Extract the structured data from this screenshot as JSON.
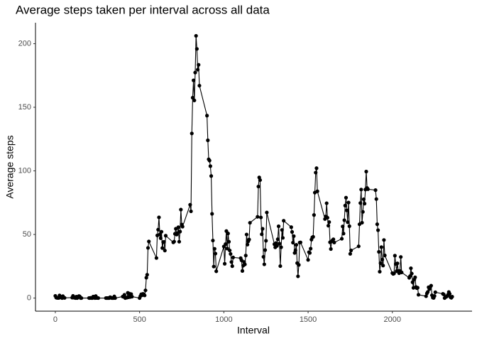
{
  "chart_data": {
    "type": "line",
    "title": "Average steps taken per interval across all data",
    "x_label": "Interval",
    "y_label": "Average steps",
    "x": [
      0,
      5,
      10,
      15,
      20,
      25,
      30,
      35,
      40,
      45,
      50,
      55,
      100,
      105,
      110,
      115,
      120,
      125,
      130,
      135,
      140,
      145,
      150,
      155,
      200,
      205,
      210,
      215,
      220,
      225,
      230,
      235,
      240,
      245,
      250,
      255,
      300,
      305,
      310,
      315,
      320,
      325,
      330,
      335,
      340,
      345,
      350,
      355,
      400,
      405,
      410,
      415,
      420,
      425,
      430,
      435,
      440,
      445,
      450,
      455,
      500,
      505,
      510,
      515,
      520,
      525,
      530,
      535,
      540,
      545,
      550,
      555,
      600,
      605,
      610,
      615,
      620,
      625,
      630,
      635,
      640,
      645,
      650,
      655,
      700,
      705,
      710,
      715,
      720,
      725,
      730,
      735,
      740,
      745,
      750,
      755,
      800,
      805,
      810,
      815,
      820,
      825,
      830,
      835,
      840,
      845,
      850,
      855,
      900,
      905,
      910,
      915,
      920,
      925,
      930,
      935,
      940,
      945,
      950,
      955,
      1000,
      1005,
      1010,
      1015,
      1020,
      1025,
      1030,
      1035,
      1040,
      1045,
      1050,
      1055,
      1100,
      1105,
      1110,
      1115,
      1120,
      1125,
      1130,
      1135,
      1140,
      1145,
      1150,
      1155,
      1200,
      1205,
      1210,
      1215,
      1220,
      1225,
      1230,
      1235,
      1240,
      1245,
      1250,
      1255,
      1300,
      1305,
      1310,
      1315,
      1320,
      1325,
      1330,
      1335,
      1340,
      1345,
      1350,
      1355,
      1400,
      1405,
      1410,
      1415,
      1420,
      1425,
      1430,
      1435,
      1440,
      1445,
      1450,
      1455,
      1500,
      1505,
      1510,
      1515,
      1520,
      1525,
      1530,
      1535,
      1540,
      1545,
      1550,
      1555,
      1600,
      1605,
      1610,
      1615,
      1620,
      1625,
      1630,
      1635,
      1640,
      1645,
      1650,
      1655,
      1700,
      1705,
      1710,
      1715,
      1720,
      1725,
      1730,
      1735,
      1740,
      1745,
      1750,
      1755,
      1800,
      1805,
      1810,
      1815,
      1820,
      1825,
      1830,
      1835,
      1840,
      1845,
      1850,
      1855,
      1900,
      1905,
      1910,
      1915,
      1920,
      1925,
      1930,
      1935,
      1940,
      1945,
      1950,
      1955,
      2000,
      2005,
      2010,
      2015,
      2020,
      2025,
      2030,
      2035,
      2040,
      2045,
      2050,
      2055,
      2100,
      2105,
      2110,
      2115,
      2120,
      2125,
      2130,
      2135,
      2140,
      2145,
      2150,
      2155,
      2200,
      2205,
      2210,
      2215,
      2220,
      2225,
      2230,
      2235,
      2240,
      2245,
      2250,
      2255,
      2300,
      2305,
      2310,
      2315,
      2320,
      2325,
      2330,
      2335,
      2340,
      2345,
      2350,
      2355
    ],
    "series": [
      {
        "color": "#000000",
        "values": [
          1.72,
          0.34,
          0.13,
          0.15,
          0.08,
          2.09,
          0.53,
          0.87,
          0,
          1.47,
          0.3,
          0.13,
          0.32,
          1.72,
          0.34,
          0.21,
          0,
          1.11,
          0.02,
          0.98,
          1.57,
          1.26,
          0,
          0,
          0.04,
          0,
          0.15,
          0,
          0,
          1.15,
          0.96,
          0,
          1.55,
          0.08,
          0.08,
          0,
          0,
          0,
          0,
          0,
          0,
          0.64,
          0.38,
          0,
          0,
          0,
          1.26,
          0,
          1.19,
          0.96,
          2.57,
          0,
          0.34,
          0.36,
          4.11,
          0.66,
          3.49,
          0.83,
          3.11,
          1.11,
          0,
          1.57,
          3,
          2.25,
          3.32,
          2.96,
          2.09,
          6.06,
          16.02,
          18.34,
          39.45,
          44.49,
          31.49,
          49.26,
          53.77,
          63.45,
          49.96,
          47.08,
          52.15,
          39.34,
          44.02,
          44.17,
          37.36,
          49.04,
          43.81,
          44.38,
          50.51,
          54.51,
          49.92,
          50.98,
          55.68,
          44.32,
          52.26,
          69.55,
          57.85,
          56.15,
          73.38,
          68.21,
          129.43,
          157.53,
          171.15,
          155.4,
          177.3,
          206.17,
          195.92,
          179.57,
          183.4,
          167.02,
          143.45,
          124.04,
          109.11,
          108.11,
          103.72,
          95.96,
          66.21,
          45.23,
          24.79,
          38.75,
          34.98,
          21.06,
          40.57,
          26.98,
          42.42,
          52.66,
          38.92,
          50.79,
          44.28,
          37.42,
          34.7,
          28.34,
          25.09,
          31.94,
          31.36,
          29.68,
          21.32,
          25.55,
          28.38,
          26.47,
          33.43,
          49.98,
          42.04,
          44.6,
          46.04,
          59.19,
          63.87,
          87.7,
          94.85,
          92.77,
          63.4,
          50.17,
          54.47,
          32.42,
          26.53,
          37.74,
          45.06,
          67.28,
          42.34,
          39.89,
          43.26,
          40.98,
          46.25,
          56.43,
          42.75,
          25.13,
          39.96,
          53.55,
          47.32,
          60.81,
          55.75,
          51.96,
          43.58,
          48.7,
          35.47,
          37.55,
          41.85,
          27.51,
          17.11,
          26.08,
          43.62,
          43.77,
          30.02,
          36.08,
          35.49,
          38.85,
          45.96,
          47.75,
          48.13,
          65.32,
          82.91,
          98.66,
          102.11,
          83.96,
          62.13,
          64.13,
          74.55,
          63.17,
          56.91,
          59.77,
          43.87,
          38.57,
          44.66,
          45.45,
          46.21,
          43.68,
          46.62,
          56.3,
          50.72,
          61.23,
          72.72,
          78.94,
          68.94,
          59.66,
          75.09,
          56.51,
          34.77,
          37.45,
          40.68,
          58.02,
          74.7,
          85.32,
          59.26,
          67.77,
          77.7,
          74.25,
          85.34,
          99.45,
          86.58,
          85.6,
          84.87,
          77.83,
          58.04,
          53.36,
          36.32,
          20.72,
          27.4,
          40.02,
          30.21,
          25.55,
          45.66,
          33.53,
          19.62,
          19.02,
          19.34,
          33.34,
          26.81,
          21.17,
          27.3,
          21.34,
          19.55,
          21.32,
          32.3,
          20.15,
          15.94,
          17.23,
          23.45,
          19.25,
          12.45,
          8.02,
          14.66,
          16.3,
          8.68,
          7.79,
          8.13,
          2.62,
          1.45,
          3.68,
          4.81,
          8.51,
          7.08,
          8.7,
          9.75,
          2.21,
          0.32,
          0.11,
          1.6,
          4.6,
          3.3,
          2.85,
          0,
          0.83,
          0.96,
          1.58,
          2.6,
          4.7,
          3.3,
          0.64,
          0.23,
          1.08
        ]
      }
    ],
    "xlim": [
      -117.75,
      2472.75
    ],
    "xticks": [
      0,
      500,
      1000,
      1500,
      2000
    ],
    "ylim": [
      -10.31,
      216.48
    ],
    "yticks": [
      0,
      50,
      100,
      150,
      200
    ]
  }
}
